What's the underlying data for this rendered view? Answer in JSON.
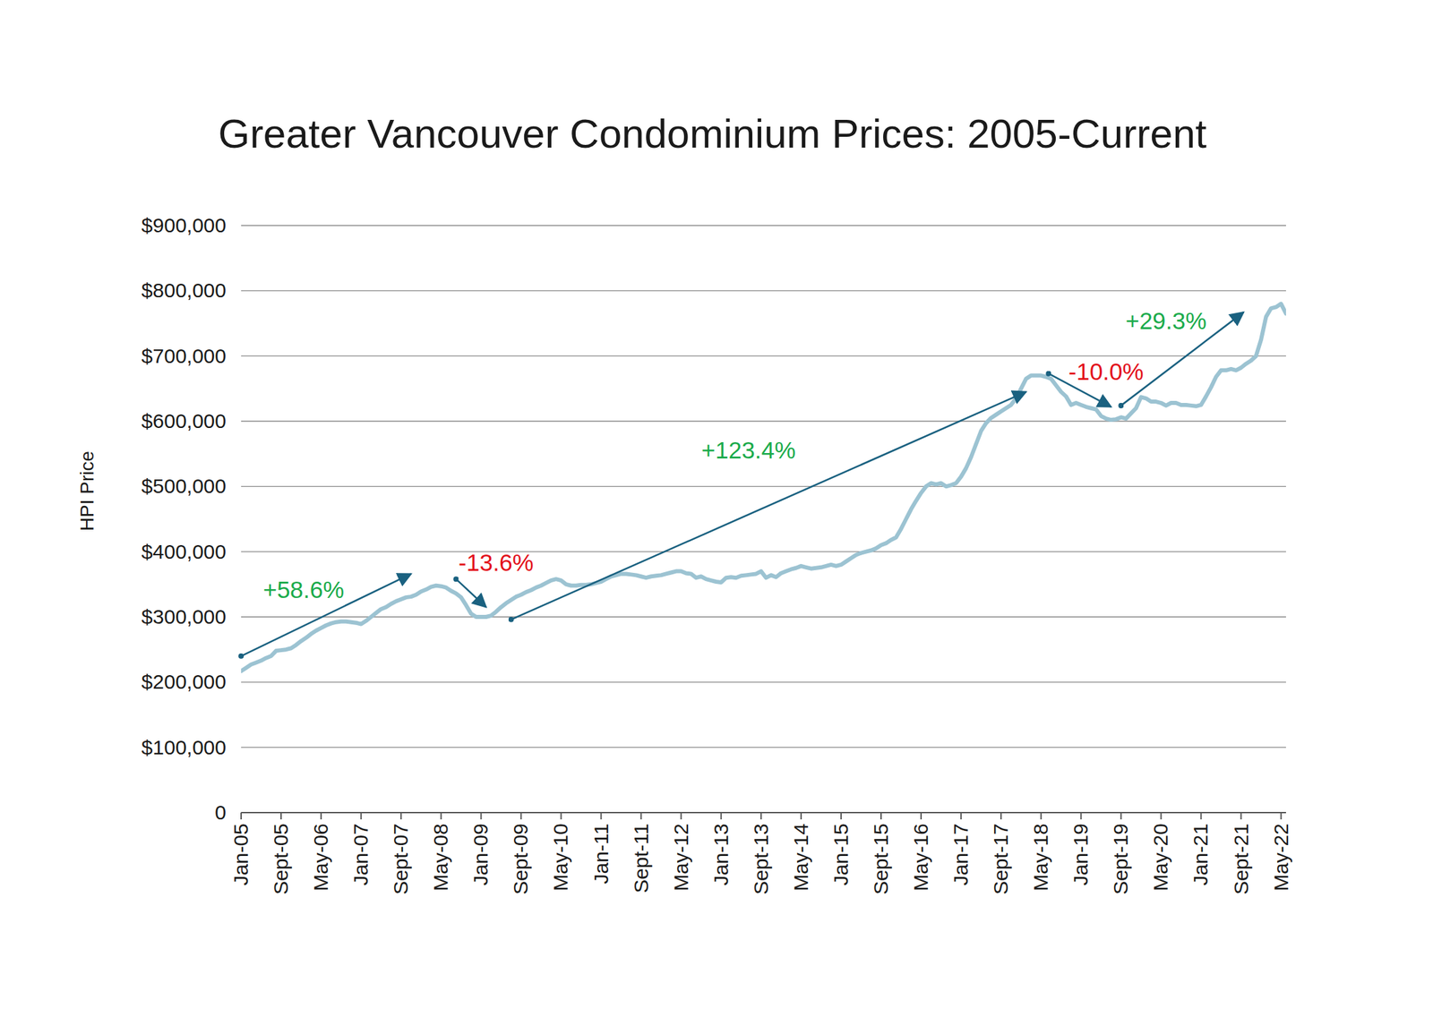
{
  "chart_data": {
    "type": "line",
    "title": "Greater Vancouver Condominium Prices: 2005-Current",
    "y_label": "HPI Price",
    "color": "#9cc3d2",
    "grid": true,
    "ylim": [
      0,
      900000
    ],
    "yticks": [
      0,
      {
        "value": 100000,
        "label": "$100,000"
      },
      {
        "value": 200000,
        "label": "$200,000"
      },
      {
        "value": 300000,
        "label": "$300,000"
      },
      {
        "value": 400000,
        "label": "$400,000"
      },
      {
        "value": 500000,
        "label": "$500,000"
      },
      {
        "value": 600000,
        "label": "$600,000"
      },
      {
        "value": 700000,
        "label": "$700,000"
      },
      {
        "value": 800000,
        "label": "$800,000"
      },
      {
        "value": 900000,
        "label": "$900,000"
      }
    ],
    "categories": [
      "Jan-05",
      null,
      null,
      null,
      null,
      null,
      null,
      null,
      "Sept-05",
      null,
      null,
      null,
      null,
      null,
      null,
      null,
      "May-06",
      null,
      null,
      null,
      null,
      null,
      null,
      null,
      "Jan-07",
      null,
      null,
      null,
      null,
      null,
      null,
      null,
      "Sept-07",
      null,
      null,
      null,
      null,
      null,
      null,
      null,
      "May-08",
      null,
      null,
      null,
      null,
      null,
      null,
      null,
      "Jan-09",
      null,
      null,
      null,
      null,
      null,
      null,
      null,
      "Sept-09",
      null,
      null,
      null,
      null,
      null,
      null,
      null,
      "May-10",
      null,
      null,
      null,
      null,
      null,
      null,
      null,
      "Jan-11",
      null,
      null,
      null,
      null,
      null,
      null,
      null,
      "Sept-11",
      null,
      null,
      null,
      null,
      null,
      null,
      null,
      "May-12",
      null,
      null,
      null,
      null,
      null,
      null,
      null,
      "Jan-13",
      null,
      null,
      null,
      null,
      null,
      null,
      null,
      "Sept-13",
      null,
      null,
      null,
      null,
      null,
      null,
      null,
      "May-14",
      null,
      null,
      null,
      null,
      null,
      null,
      null,
      "Jan-15",
      null,
      null,
      null,
      null,
      null,
      null,
      null,
      "Sept-15",
      null,
      null,
      null,
      null,
      null,
      null,
      null,
      "May-16",
      null,
      null,
      null,
      null,
      null,
      null,
      null,
      "Jan-17",
      null,
      null,
      null,
      null,
      null,
      null,
      null,
      "Sept-17",
      null,
      null,
      null,
      null,
      null,
      null,
      null,
      "May-18",
      null,
      null,
      null,
      null,
      null,
      null,
      null,
      "Jan-19",
      null,
      null,
      null,
      null,
      null,
      null,
      null,
      "Sept-19",
      null,
      null,
      null,
      null,
      null,
      null,
      null,
      "May-20",
      null,
      null,
      null,
      null,
      null,
      null,
      null,
      "Jan-21",
      null,
      null,
      null,
      null,
      null,
      null,
      null,
      "Sept-21",
      null,
      null,
      null,
      null,
      null,
      null,
      null,
      "May-22",
      null
    ],
    "values": [
      217000,
      222000,
      227000,
      230000,
      233000,
      237000,
      240000,
      248000,
      249000,
      250000,
      252000,
      257000,
      263000,
      268000,
      274000,
      279000,
      283000,
      287000,
      290000,
      292000,
      293000,
      293000,
      292000,
      291000,
      289000,
      294000,
      300000,
      306000,
      312000,
      315000,
      320000,
      324000,
      327000,
      330000,
      331000,
      334000,
      339000,
      342000,
      346000,
      348000,
      347000,
      345000,
      340000,
      336000,
      330000,
      318000,
      305000,
      300000,
      300000,
      300000,
      302000,
      308000,
      315000,
      321000,
      326000,
      331000,
      334000,
      338000,
      341000,
      345000,
      348000,
      352000,
      356000,
      358000,
      356000,
      350000,
      348000,
      348000,
      349000,
      349000,
      350000,
      352000,
      354000,
      358000,
      362000,
      364000,
      366000,
      366000,
      365000,
      364000,
      362000,
      360000,
      362000,
      363000,
      364000,
      366000,
      368000,
      370000,
      370000,
      367000,
      366000,
      360000,
      362000,
      358000,
      356000,
      354000,
      353000,
      360000,
      361000,
      360000,
      363000,
      364000,
      365000,
      366000,
      370000,
      360000,
      364000,
      361000,
      367000,
      370000,
      373000,
      375000,
      378000,
      376000,
      374000,
      375000,
      376000,
      378000,
      380000,
      378000,
      380000,
      385000,
      390000,
      395000,
      398000,
      400000,
      402000,
      405000,
      410000,
      413000,
      418000,
      422000,
      435000,
      450000,
      465000,
      478000,
      490000,
      500000,
      505000,
      503000,
      505000,
      500000,
      502000,
      505000,
      515000,
      528000,
      545000,
      565000,
      585000,
      597000,
      605000,
      610000,
      615000,
      620000,
      625000,
      635000,
      650000,
      665000,
      670000,
      670000,
      670000,
      668000,
      665000,
      655000,
      645000,
      638000,
      625000,
      628000,
      625000,
      622000,
      620000,
      618000,
      608000,
      604000,
      602000,
      603000,
      606000,
      604000,
      612000,
      620000,
      637000,
      635000,
      630000,
      630000,
      628000,
      624000,
      628000,
      628000,
      625000,
      625000,
      624000,
      623000,
      625000,
      638000,
      652000,
      668000,
      678000,
      678000,
      680000,
      678000,
      682000,
      688000,
      693000,
      700000,
      725000,
      760000,
      773000,
      775000,
      780000,
      765000
    ],
    "annotations": [
      {
        "text": "+58.6%",
        "color": "#1aab4b",
        "from": {
          "x": 0,
          "y": 240000
        },
        "to": {
          "x": 34,
          "y": 366000
        },
        "at": {
          "x": 12.5,
          "y": 342000
        }
      },
      {
        "text": "-13.6%",
        "color": "#e3101b",
        "from": {
          "x": 43,
          "y": 358000
        },
        "to": {
          "x": 49,
          "y": 315000
        },
        "at": {
          "x": 51,
          "y": 383000
        }
      },
      {
        "text": "+123.4%",
        "color": "#1aab4b",
        "from": {
          "x": 54,
          "y": 296000
        },
        "to": {
          "x": 157,
          "y": 645000
        },
        "at": {
          "x": 101.5,
          "y": 555000
        }
      },
      {
        "text": "-10.0%",
        "color": "#e3101b",
        "from": {
          "x": 161.5,
          "y": 673000
        },
        "to": {
          "x": 174,
          "y": 622000
        },
        "at": {
          "x": 173,
          "y": 676000
        }
      },
      {
        "text": "+29.3%",
        "color": "#1aab4b",
        "from": {
          "x": 176,
          "y": 624000
        },
        "to": {
          "x": 200.5,
          "y": 767000
        },
        "at": {
          "x": 185,
          "y": 754000
        }
      }
    ]
  }
}
